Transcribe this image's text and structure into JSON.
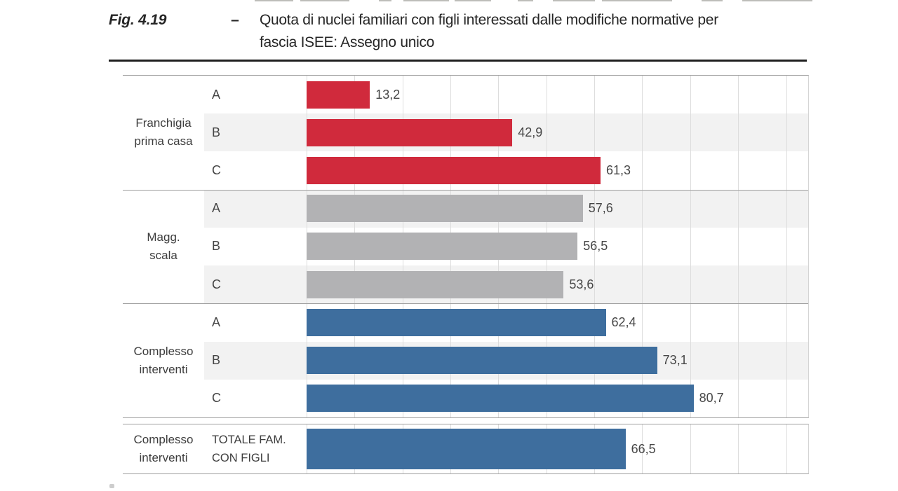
{
  "figure": {
    "label": "Fig. 4.19",
    "dash": "–",
    "title_line1": "Quota di nuclei familiari con figli interessati dalle modifiche normative per",
    "title_line2": "fascia ISEE: Assegno unico"
  },
  "chart_data": {
    "type": "bar",
    "orientation": "horizontal",
    "title": "Quota di nuclei familiari con figli interessati dalle modifiche normative per fascia ISEE: Assegno unico",
    "xlabel": "",
    "ylabel": "",
    "xlim": [
      0,
      104.6
    ],
    "xmax": 104.6,
    "gridline_step": 10,
    "grid": "on",
    "legend": "none",
    "value_format": "comma-decimal",
    "groups": [
      {
        "label": "Franchigia prima casa",
        "label_line1": "Franchigia",
        "label_line2": "prima casa",
        "color": "#d02a3c",
        "rows": [
          {
            "category": "A",
            "value": 13.2,
            "display": "13,2"
          },
          {
            "category": "B",
            "value": 42.9,
            "display": "42,9"
          },
          {
            "category": "C",
            "value": 61.3,
            "display": "61,3"
          }
        ]
      },
      {
        "label": "Magg. scala",
        "label_line1": "Magg.",
        "label_line2": "scala",
        "color": "#b2b2b4",
        "rows": [
          {
            "category": "A",
            "value": 57.6,
            "display": "57,6"
          },
          {
            "category": "B",
            "value": 56.5,
            "display": "56,5"
          },
          {
            "category": "C",
            "value": 53.6,
            "display": "53,6"
          }
        ]
      },
      {
        "label": "Complesso interventi",
        "label_line1": "Complesso",
        "label_line2": "interventi",
        "color": "#3e6e9e",
        "rows": [
          {
            "category": "A",
            "value": 62.4,
            "display": "62,4"
          },
          {
            "category": "B",
            "value": 73.1,
            "display": "73,1"
          },
          {
            "category": "C",
            "value": 80.7,
            "display": "80,7"
          }
        ]
      }
    ],
    "total": {
      "group_label_line1": "Complesso",
      "group_label_line2": "interventi",
      "category_line1": "TOTALE FAM.",
      "category_line2": "CON FIGLI",
      "color": "#3e6e9e",
      "value": 66.5,
      "display": "66,5"
    }
  },
  "colors": {
    "red_bar": "#d02a3c",
    "gray_bar": "#b2b2b4",
    "blue_bar": "#3e6e9e",
    "row_stripe": "#f2f2f2",
    "border": "#9e9e9e",
    "gridline": "#dddddd",
    "title_rule": "#1f1f1f",
    "text": "#3d3d3d"
  }
}
